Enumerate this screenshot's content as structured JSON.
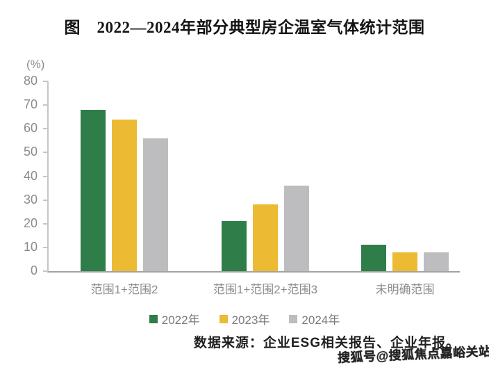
{
  "chart_data": {
    "type": "bar",
    "title": "图　2022—2024年部分典型房企温室气体统计范围",
    "unit_label": "(%)",
    "categories": [
      "范围1+范围2",
      "范围1+范围2+范围3",
      "未明确范围"
    ],
    "series": [
      {
        "name": "2022年",
        "color": "#2f7d49",
        "values": [
          68,
          21,
          11
        ]
      },
      {
        "name": "2023年",
        "color": "#edba33",
        "values": [
          64,
          28,
          8
        ]
      },
      {
        "name": "2024年",
        "color": "#bdbdbf",
        "values": [
          56,
          36,
          8
        ]
      }
    ],
    "ylim": [
      0,
      80
    ],
    "yticks": [
      0,
      10,
      20,
      30,
      40,
      50,
      60,
      70,
      80
    ],
    "grid": false,
    "legend_position": "bottom"
  },
  "footer": {
    "source_text": "数据来源：企业ESG相关报告、企业年报。"
  },
  "watermark": {
    "text": "搜狐号@搜狐焦点嘉峪关站"
  },
  "colors": {
    "axis_line": "#c6c6c6",
    "baseline": "#a3a3a3",
    "tick_text": "#8b8b8b",
    "legend_text": "#7a7a7a",
    "title_text": "#141414",
    "footer_text": "#1f1f1f",
    "series_green": "#2f7d49",
    "series_yellow": "#edba33",
    "series_gray": "#bdbdbf"
  }
}
